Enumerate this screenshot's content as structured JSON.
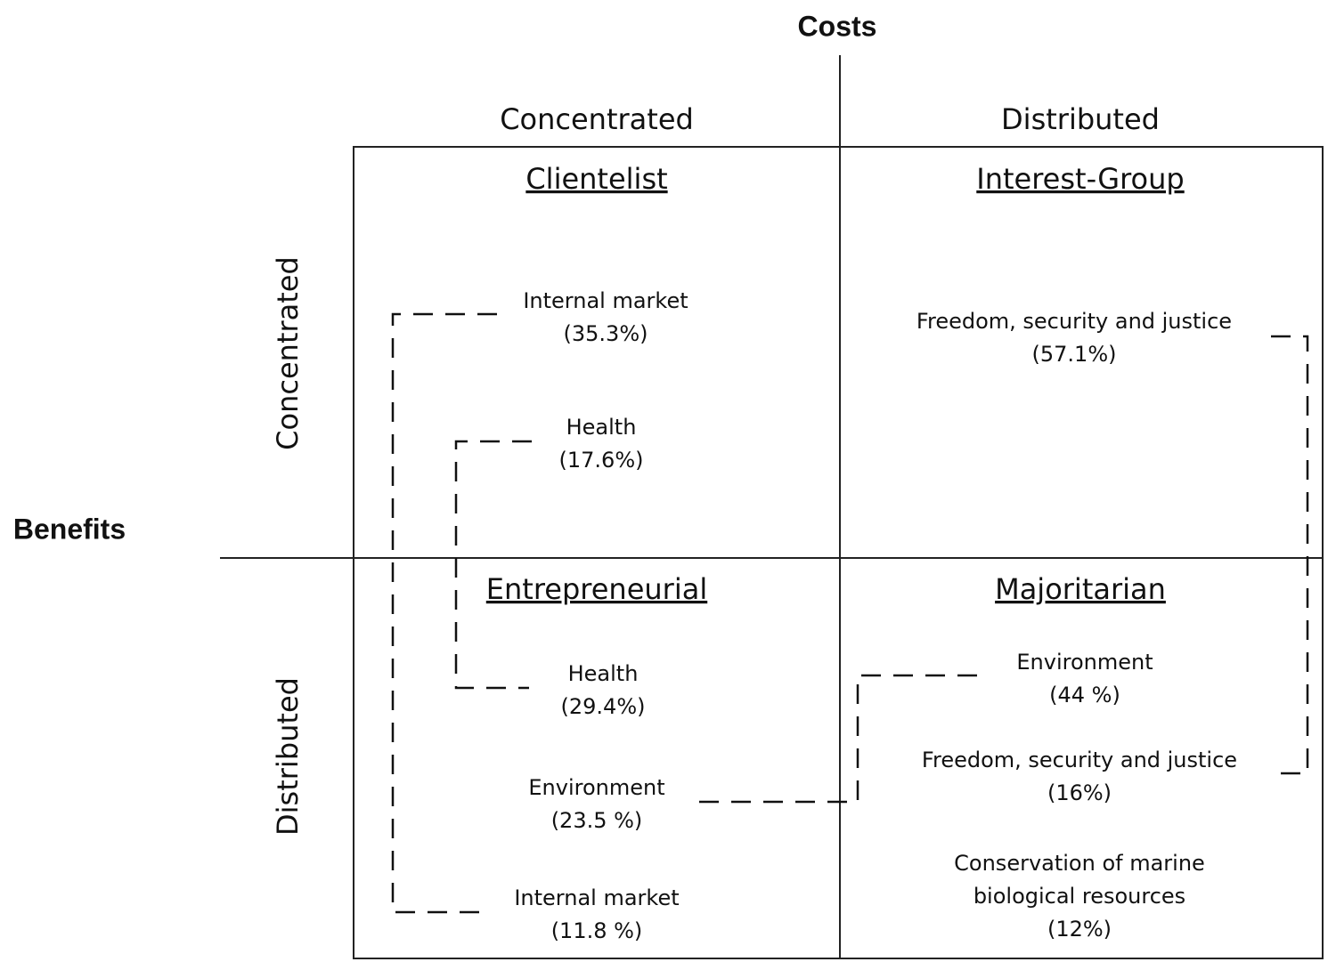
{
  "axes": {
    "columns_title": "Costs",
    "rows_title": "Benefits",
    "columns": [
      "Concentrated",
      "Distributed"
    ],
    "rows": [
      "Concentrated",
      "Distributed"
    ]
  },
  "quadrants": [
    {
      "title": "Clientelist",
      "items": [
        {
          "label": [
            "Internal market"
          ],
          "share": "(35.3%)"
        },
        {
          "label": [
            "Health"
          ],
          "share": "(17.6%)"
        }
      ]
    },
    {
      "title": "Interest-Group",
      "items": [
        {
          "label": [
            "Freedom, security and justice"
          ],
          "share": "(57.1%)"
        }
      ]
    },
    {
      "title": "Entrepreneurial",
      "items": [
        {
          "label": [
            "Health"
          ],
          "share": "(29.4%)"
        },
        {
          "label": [
            "Environment"
          ],
          "share": "(23.5 %)"
        },
        {
          "label": [
            "Internal market"
          ],
          "share": "(11.8 %)"
        }
      ]
    },
    {
      "title": "Majoritarian",
      "items": [
        {
          "label": [
            "Environment"
          ],
          "share": "(44 %)"
        },
        {
          "label": [
            "Freedom, security and justice"
          ],
          "share": "(16%)"
        },
        {
          "label": [
            "Conservation of marine",
            "biological resources"
          ],
          "share": "(12%)"
        }
      ]
    }
  ]
}
